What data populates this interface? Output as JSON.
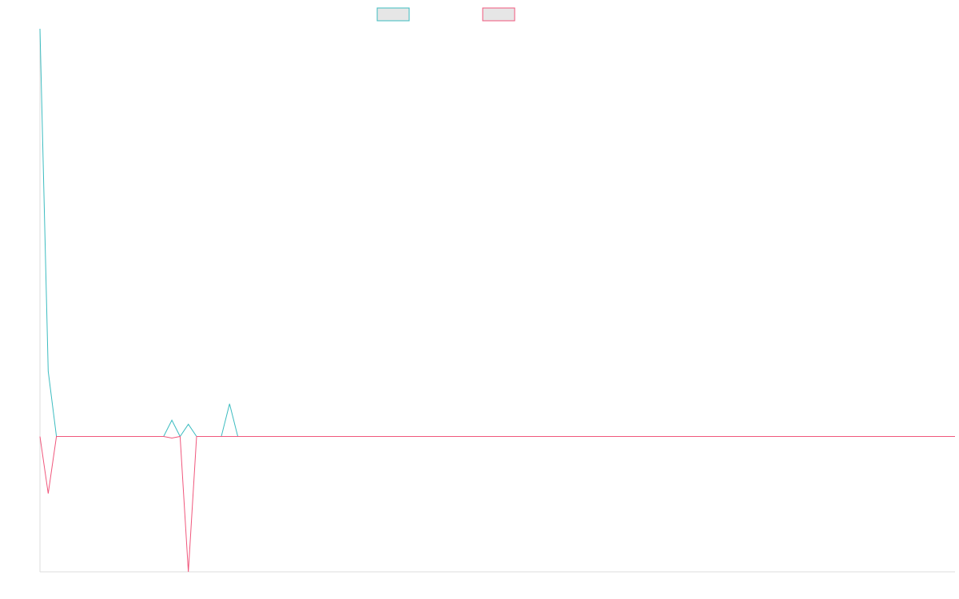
{
  "chart_data": {
    "type": "line",
    "title": "",
    "xlabel": "",
    "ylabel": "",
    "grid": false,
    "legend_position": "top-center",
    "x_count": 112,
    "series": [
      {
        "color": "#3cbcc0",
        "fill": "#e6e6e6",
        "values": [
          25,
          4,
          0,
          0,
          0,
          0,
          0,
          0,
          0,
          0,
          0,
          0,
          0,
          0,
          0,
          0,
          1,
          0,
          0.75,
          0,
          0,
          0,
          0,
          2,
          0,
          0,
          0,
          0,
          0,
          0,
          0,
          0,
          0,
          0,
          0,
          0,
          0,
          0,
          0,
          0,
          0,
          0,
          0,
          0,
          0,
          0,
          0,
          0,
          0,
          0,
          0,
          0,
          0,
          0,
          0,
          0,
          0,
          0,
          0,
          0,
          0,
          0,
          0,
          0,
          0,
          0,
          0,
          0,
          0,
          0,
          0,
          0,
          0,
          0,
          0,
          0,
          0,
          0,
          0,
          0,
          0,
          0,
          0,
          0,
          0,
          0,
          0,
          0,
          0,
          0,
          0,
          0,
          0,
          0,
          0,
          0,
          0,
          0,
          0,
          0,
          0,
          0,
          0,
          0,
          0,
          0,
          0,
          0,
          0,
          0,
          0,
          0
        ]
      },
      {
        "color": "#f0577c",
        "fill": "#e6e6e6",
        "values": [
          0,
          -3.5,
          0,
          0,
          0,
          0,
          0,
          0,
          0,
          0,
          0,
          0,
          0,
          0,
          0,
          0,
          -0.1,
          0,
          -8.3,
          0,
          0,
          0,
          0,
          0,
          0,
          0,
          0,
          0,
          0,
          0,
          0,
          0,
          0,
          0,
          0,
          0,
          0,
          0,
          0,
          0,
          0,
          0,
          0,
          0,
          0,
          0,
          0,
          0,
          0,
          0,
          0,
          0,
          0,
          0,
          0,
          0,
          0,
          0,
          0,
          0,
          0,
          0,
          0,
          0,
          0,
          0,
          0,
          0,
          0,
          0,
          0,
          0,
          0,
          0,
          0,
          0,
          0,
          0,
          0,
          0,
          0,
          0,
          0,
          0,
          0,
          0,
          0,
          0,
          0,
          0,
          0,
          0,
          0,
          0,
          0,
          0,
          0,
          0,
          0,
          0,
          0,
          0,
          0,
          0,
          0,
          0,
          0,
          0,
          0,
          0,
          0,
          0
        ]
      }
    ],
    "ylim": [
      -8.3,
      25
    ]
  }
}
